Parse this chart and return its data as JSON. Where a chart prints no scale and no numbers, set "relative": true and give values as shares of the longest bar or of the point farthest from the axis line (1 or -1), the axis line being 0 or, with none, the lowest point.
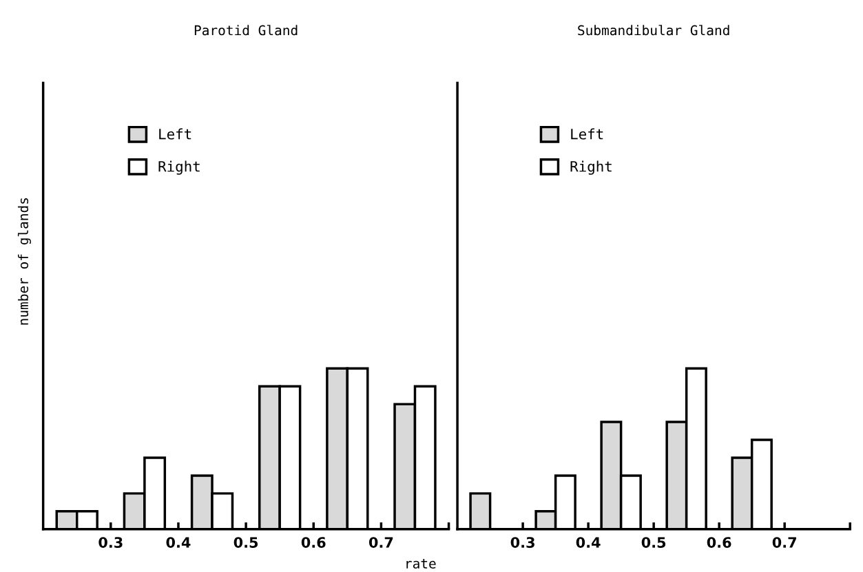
{
  "chart_data": [
    {
      "type": "bar",
      "title": "Parotid Gland",
      "xlabel": "rate",
      "ylabel": "number of glands",
      "relative": true,
      "legend": "top left",
      "xlim": [
        0.2,
        0.8
      ],
      "xticks": [
        0.3,
        0.4,
        0.5,
        0.6,
        0.7,
        {
          "value": 0.8,
          "label": null
        }
      ],
      "series": [
        {
          "name": "Left",
          "color": "#d9d9d9",
          "x": [
            0.235,
            0.335,
            0.435,
            0.535,
            0.635,
            0.735
          ],
          "values": [
            0.111,
            0.222,
            0.333,
            0.889,
            1,
            0.778
          ]
        },
        {
          "name": "Right",
          "color": "#ffffff",
          "x": [
            0.265,
            0.365,
            0.465,
            0.565,
            0.665,
            0.765
          ],
          "values": [
            0.111,
            0.444,
            0.222,
            0.889,
            1,
            0.889
          ]
        }
      ]
    },
    {
      "type": "bar",
      "title": "Submandibular Gland",
      "relative": true,
      "legend": "top left",
      "xlim": [
        0.2,
        0.8
      ],
      "xticks": [
        0.3,
        0.4,
        0.5,
        0.6,
        0.7,
        {
          "value": 0.8,
          "label": null
        }
      ],
      "series": [
        {
          "name": "Left",
          "color": "#d9d9d9",
          "x": [
            0.235,
            0.335,
            0.435,
            0.535,
            0.635
          ],
          "values": [
            0.222,
            0.111,
            0.667,
            0.667,
            0.444
          ]
        },
        {
          "name": "Right",
          "color": "#ffffff",
          "x": [
            0.365,
            0.465,
            0.565,
            0.665
          ],
          "values": [
            0.333,
            0.333,
            1,
            0.556
          ]
        }
      ]
    }
  ]
}
